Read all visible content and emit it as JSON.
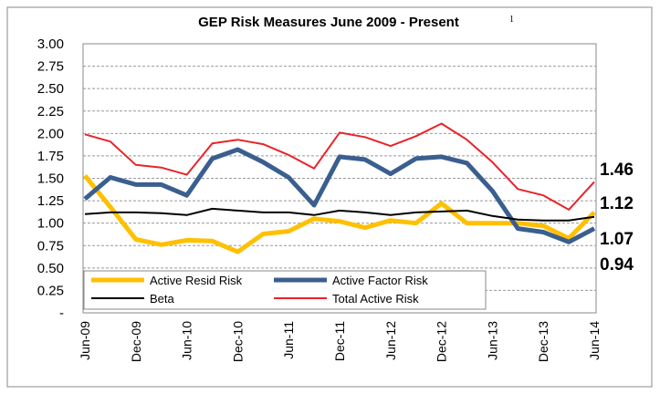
{
  "chart_data": {
    "type": "line",
    "title": "GEP Risk Measures June 2009 - Present",
    "title_note": "1",
    "categories": [
      "Jun-09",
      null,
      "Dec-09",
      null,
      "Jun-10",
      null,
      "Dec-10",
      null,
      "Jun-11",
      null,
      "Dec-11",
      null,
      "Jun-12",
      null,
      "Dec-12",
      null,
      "Jun-13",
      null,
      "Dec-13",
      null,
      "Jun-14"
    ],
    "series": [
      {
        "name": "Active Resid Risk",
        "color": "#ffc000",
        "values": [
          1.53,
          1.18,
          0.82,
          0.76,
          0.81,
          0.8,
          0.68,
          0.88,
          0.91,
          1.05,
          1.02,
          0.95,
          1.03,
          1.0,
          1.22,
          1.0,
          1.0,
          1.0,
          0.97,
          0.83,
          1.12
        ]
      },
      {
        "name": "Active Factor Risk",
        "color": "#3a5f8f",
        "values": [
          1.27,
          1.51,
          1.43,
          1.43,
          1.31,
          1.72,
          1.82,
          1.68,
          1.51,
          1.2,
          1.74,
          1.71,
          1.55,
          1.72,
          1.74,
          1.67,
          1.36,
          0.94,
          0.9,
          0.79,
          0.94
        ]
      },
      {
        "name": "Beta",
        "color": "#000000",
        "values": [
          1.1,
          1.12,
          1.12,
          1.11,
          1.09,
          1.16,
          1.14,
          1.12,
          1.12,
          1.09,
          1.14,
          1.12,
          1.09,
          1.12,
          1.13,
          1.14,
          1.08,
          1.04,
          1.03,
          1.03,
          1.07
        ]
      },
      {
        "name": "Total Active Risk",
        "color": "#e8232a",
        "values": [
          1.99,
          1.91,
          1.65,
          1.62,
          1.54,
          1.89,
          1.93,
          1.88,
          1.76,
          1.61,
          2.01,
          1.96,
          1.86,
          1.97,
          2.11,
          1.93,
          1.68,
          1.38,
          1.31,
          1.15,
          1.46
        ]
      }
    ],
    "annotations": [
      "1.46",
      "1.12",
      "1.07",
      "0.94"
    ],
    "ylim": [
      0,
      3
    ],
    "yticks": [
      {
        "value": 0,
        "label": "-"
      },
      {
        "value": 0.25,
        "label": "0.25"
      },
      {
        "value": 0.5,
        "label": "0.50"
      },
      {
        "value": 0.75,
        "label": "0.75"
      },
      {
        "value": 1,
        "label": "1.00"
      },
      {
        "value": 1.25,
        "label": "1.25"
      },
      {
        "value": 1.5,
        "label": "1.50"
      },
      {
        "value": 1.75,
        "label": "1.75"
      },
      {
        "value": 2,
        "label": "2.00"
      },
      {
        "value": 2.25,
        "label": "2.25"
      },
      {
        "value": 2.5,
        "label": "2.50"
      },
      {
        "value": 2.75,
        "label": "2.75"
      },
      {
        "value": 3,
        "label": "3.00"
      }
    ],
    "grid": true,
    "legend": "lower left"
  }
}
